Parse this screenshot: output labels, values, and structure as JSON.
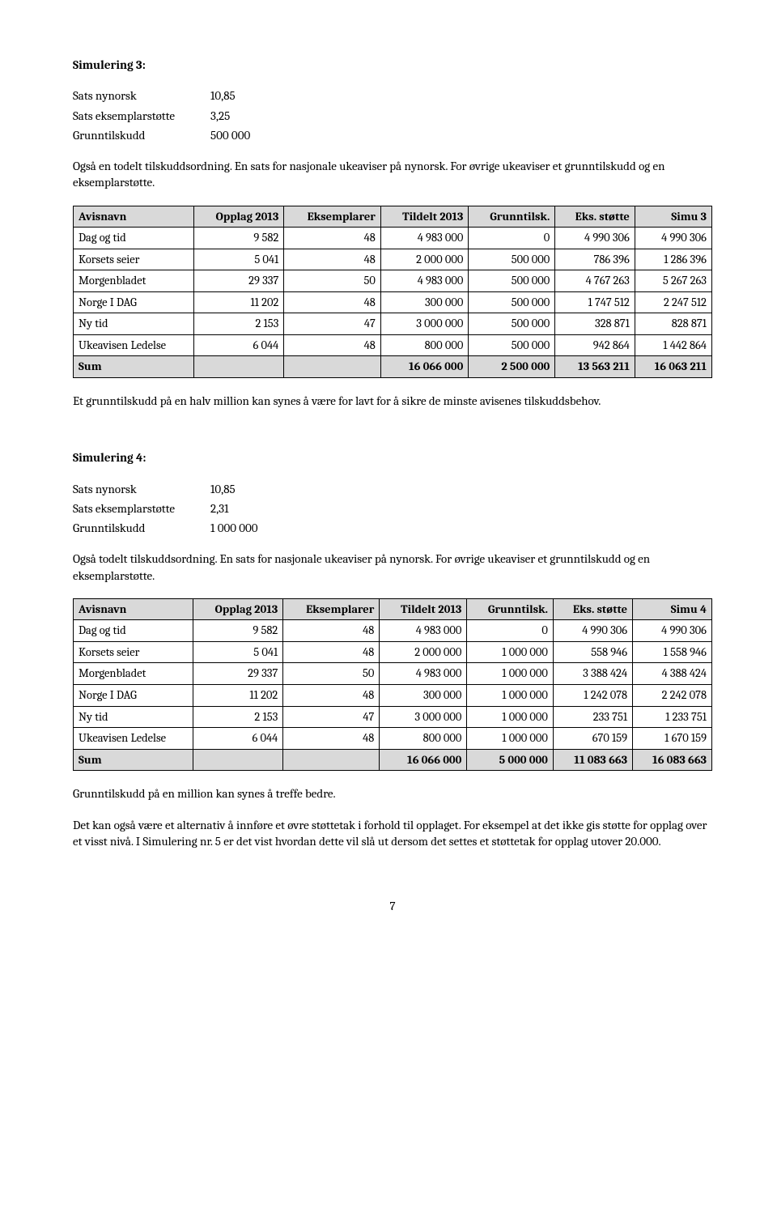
{
  "sim3": {
    "title": "Simulering 3:",
    "params": [
      {
        "label": "Sats nynorsk",
        "value": "10,85"
      },
      {
        "label": "Sats eksemplarstøtte",
        "value": "3,25"
      },
      {
        "label": "Grunntilskudd",
        "value": "500 000"
      }
    ],
    "intro": "Også en todelt tilskuddsordning. En sats for nasjonale ukeaviser på nynorsk. For øvrige ukeaviser et grunntilskudd og en eksemplarstøtte.",
    "headers": [
      "Avisnavn",
      "Opplag 2013",
      "Eksemplarer",
      "Tildelt 2013",
      "Grunntilsk.",
      "Eks. støtte",
      "Simu 3"
    ],
    "rows": [
      [
        "Dag og tid",
        "9 582",
        "48",
        "4 983 000",
        "0",
        "4 990 306",
        "4 990 306"
      ],
      [
        "Korsets seier",
        "5 041",
        "48",
        "2 000 000",
        "500 000",
        "786 396",
        "1 286 396"
      ],
      [
        "Morgenbladet",
        "29 337",
        "50",
        "4 983 000",
        "500 000",
        "4 767 263",
        "5 267 263"
      ],
      [
        "Norge I DAG",
        "11 202",
        "48",
        "300 000",
        "500 000",
        "1 747 512",
        "2 247 512"
      ],
      [
        "Ny tid",
        "2 153",
        "47",
        "3 000 000",
        "500 000",
        "328 871",
        "828 871"
      ],
      [
        "Ukeavisen Ledelse",
        "6 044",
        "48",
        "800 000",
        "500 000",
        "942 864",
        "1 442 864"
      ]
    ],
    "sum": [
      "Sum",
      "",
      "",
      "16 066 000",
      "2 500 000",
      "13 563 211",
      "16 063 211"
    ],
    "outro": "Et grunntilskudd på en halv million kan synes å være for lavt for å sikre de minste avisenes tilskuddsbehov."
  },
  "sim4": {
    "title": "Simulering 4:",
    "params": [
      {
        "label": "Sats nynorsk",
        "value": "10,85"
      },
      {
        "label": "Sats eksemplarstøtte",
        "value": "2,31"
      },
      {
        "label": "Grunntilskudd",
        "value": "1 000 000"
      }
    ],
    "intro": "Også todelt tilskuddsordning. En sats for nasjonale ukeaviser på nynorsk. For øvrige ukeaviser et grunntilskudd og en eksemplarstøtte.",
    "headers": [
      "Avisnavn",
      "Opplag 2013",
      "Eksemplarer",
      "Tildelt 2013",
      "Grunntilsk.",
      "Eks. støtte",
      "Simu 4"
    ],
    "rows": [
      [
        "Dag og tid",
        "9 582",
        "48",
        "4 983 000",
        "0",
        "4 990 306",
        "4 990 306"
      ],
      [
        "Korsets seier",
        "5 041",
        "48",
        "2 000 000",
        "1 000 000",
        "558 946",
        "1 558 946"
      ],
      [
        "Morgenbladet",
        "29 337",
        "50",
        "4 983 000",
        "1 000 000",
        "3 388 424",
        "4 388 424"
      ],
      [
        "Norge I DAG",
        "11 202",
        "48",
        "300 000",
        "1 000 000",
        "1 242 078",
        "2 242 078"
      ],
      [
        "Ny tid",
        "2 153",
        "47",
        "3 000 000",
        "1 000 000",
        "233 751",
        "1 233 751"
      ],
      [
        "Ukeavisen Ledelse",
        "6 044",
        "48",
        "800 000",
        "1 000 000",
        "670 159",
        "1 670 159"
      ]
    ],
    "sum": [
      "Sum",
      "",
      "",
      "16 066 000",
      "5 000 000",
      "11 083 663",
      "16 083 663"
    ],
    "outro1": "Grunntilskudd på en million kan synes å treffe bedre.",
    "outro2": "Det kan også være et alternativ å innføre et øvre støttetak i forhold til opplaget. For eksempel at det ikke gis støtte for opplag over et visst nivå. I Simulering nr. 5 er det vist hvordan dette vil slå ut dersom det settes et støttetak for opplag utover 20.000."
  },
  "pageNumber": "7"
}
